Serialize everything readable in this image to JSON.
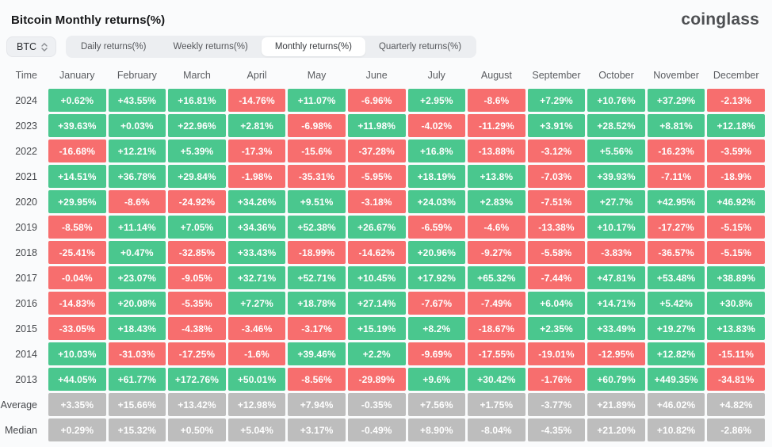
{
  "header": {
    "title": "Bitcoin Monthly returns(%)",
    "logo": "coinglass"
  },
  "controls": {
    "coin_selector": {
      "value": "BTC",
      "icon": "updown-icon"
    },
    "tabs": [
      {
        "name": "tab-daily-returns",
        "label": "Daily returns(%)",
        "active": false
      },
      {
        "name": "tab-weekly-returns",
        "label": "Weekly returns(%)",
        "active": false
      },
      {
        "name": "tab-monthly-returns",
        "label": "Monthly returns(%)",
        "active": true
      },
      {
        "name": "tab-quarterly-returns",
        "label": "Quarterly returns(%)",
        "active": false
      }
    ]
  },
  "colors": {
    "positive": "#4AC78E",
    "negative": "#F76E6E",
    "neutral": "#BDBDBD"
  },
  "chart_data": {
    "type": "heatmap",
    "title": "Bitcoin Monthly returns(%)",
    "columns": [
      "Time",
      "January",
      "February",
      "March",
      "April",
      "May",
      "June",
      "July",
      "August",
      "September",
      "October",
      "November",
      "December"
    ],
    "rows": [
      {
        "label": "2024",
        "summary": false,
        "values": [
          "+0.62%",
          "+43.55%",
          "+16.81%",
          "-14.76%",
          "+11.07%",
          "-6.96%",
          "+2.95%",
          "-8.6%",
          "+7.29%",
          "+10.76%",
          "+37.29%",
          "-2.13%"
        ]
      },
      {
        "label": "2023",
        "summary": false,
        "values": [
          "+39.63%",
          "+0.03%",
          "+22.96%",
          "+2.81%",
          "-6.98%",
          "+11.98%",
          "-4.02%",
          "-11.29%",
          "+3.91%",
          "+28.52%",
          "+8.81%",
          "+12.18%"
        ]
      },
      {
        "label": "2022",
        "summary": false,
        "values": [
          "-16.68%",
          "+12.21%",
          "+5.39%",
          "-17.3%",
          "-15.6%",
          "-37.28%",
          "+16.8%",
          "-13.88%",
          "-3.12%",
          "+5.56%",
          "-16.23%",
          "-3.59%"
        ]
      },
      {
        "label": "2021",
        "summary": false,
        "values": [
          "+14.51%",
          "+36.78%",
          "+29.84%",
          "-1.98%",
          "-35.31%",
          "-5.95%",
          "+18.19%",
          "+13.8%",
          "-7.03%",
          "+39.93%",
          "-7.11%",
          "-18.9%"
        ]
      },
      {
        "label": "2020",
        "summary": false,
        "values": [
          "+29.95%",
          "-8.6%",
          "-24.92%",
          "+34.26%",
          "+9.51%",
          "-3.18%",
          "+24.03%",
          "+2.83%",
          "-7.51%",
          "+27.7%",
          "+42.95%",
          "+46.92%"
        ]
      },
      {
        "label": "2019",
        "summary": false,
        "values": [
          "-8.58%",
          "+11.14%",
          "+7.05%",
          "+34.36%",
          "+52.38%",
          "+26.67%",
          "-6.59%",
          "-4.6%",
          "-13.38%",
          "+10.17%",
          "-17.27%",
          "-5.15%"
        ]
      },
      {
        "label": "2018",
        "summary": false,
        "values": [
          "-25.41%",
          "+0.47%",
          "-32.85%",
          "+33.43%",
          "-18.99%",
          "-14.62%",
          "+20.96%",
          "-9.27%",
          "-5.58%",
          "-3.83%",
          "-36.57%",
          "-5.15%"
        ]
      },
      {
        "label": "2017",
        "summary": false,
        "values": [
          "-0.04%",
          "+23.07%",
          "-9.05%",
          "+32.71%",
          "+52.71%",
          "+10.45%",
          "+17.92%",
          "+65.32%",
          "-7.44%",
          "+47.81%",
          "+53.48%",
          "+38.89%"
        ]
      },
      {
        "label": "2016",
        "summary": false,
        "values": [
          "-14.83%",
          "+20.08%",
          "-5.35%",
          "+7.27%",
          "+18.78%",
          "+27.14%",
          "-7.67%",
          "-7.49%",
          "+6.04%",
          "+14.71%",
          "+5.42%",
          "+30.8%"
        ]
      },
      {
        "label": "2015",
        "summary": false,
        "values": [
          "-33.05%",
          "+18.43%",
          "-4.38%",
          "-3.46%",
          "-3.17%",
          "+15.19%",
          "+8.2%",
          "-18.67%",
          "+2.35%",
          "+33.49%",
          "+19.27%",
          "+13.83%"
        ]
      },
      {
        "label": "2014",
        "summary": false,
        "values": [
          "+10.03%",
          "-31.03%",
          "-17.25%",
          "-1.6%",
          "+39.46%",
          "+2.2%",
          "-9.69%",
          "-17.55%",
          "-19.01%",
          "-12.95%",
          "+12.82%",
          "-15.11%"
        ]
      },
      {
        "label": "2013",
        "summary": false,
        "values": [
          "+44.05%",
          "+61.77%",
          "+172.76%",
          "+50.01%",
          "-8.56%",
          "-29.89%",
          "+9.6%",
          "+30.42%",
          "-1.76%",
          "+60.79%",
          "+449.35%",
          "-34.81%"
        ]
      },
      {
        "label": "Average",
        "summary": true,
        "values": [
          "+3.35%",
          "+15.66%",
          "+13.42%",
          "+12.98%",
          "+7.94%",
          "-0.35%",
          "+7.56%",
          "+1.75%",
          "-3.77%",
          "+21.89%",
          "+46.02%",
          "+4.82%"
        ]
      },
      {
        "label": "Median",
        "summary": true,
        "values": [
          "+0.29%",
          "+15.32%",
          "+0.50%",
          "+5.04%",
          "+3.17%",
          "-0.49%",
          "+8.90%",
          "-8.04%",
          "-4.35%",
          "+21.20%",
          "+10.82%",
          "-2.86%"
        ]
      }
    ]
  }
}
